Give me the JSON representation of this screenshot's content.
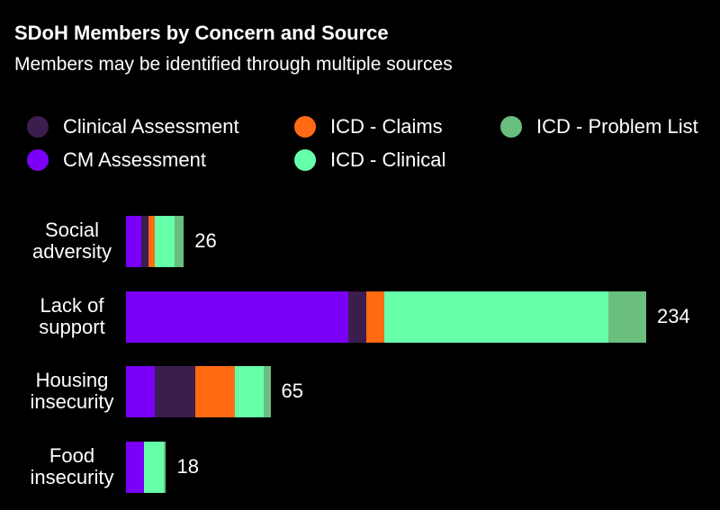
{
  "chart_data": {
    "type": "stacked-bar-horizontal",
    "title": "SDoH Members by Concern and Source",
    "subtitle": "Members may be identified through multiple sources",
    "categories": [
      "Social adversity",
      "Lack of support",
      "Housing insecurity",
      "Food insecurity"
    ],
    "series": [
      {
        "name": "CM Assessment",
        "color": "#7b00f7",
        "values": [
          7,
          100,
          13,
          8
        ]
      },
      {
        "name": "Clinical Assessment",
        "color": "#3b1d4e",
        "values": [
          3,
          8,
          18,
          0
        ]
      },
      {
        "name": "ICD - Claims",
        "color": "#ff6a13",
        "values": [
          3,
          8,
          18,
          0
        ]
      },
      {
        "name": "ICD - Clinical",
        "color": "#66ffaa",
        "values": [
          9,
          101,
          13,
          9
        ]
      },
      {
        "name": "ICD - Problem List",
        "color": "#6abf7f",
        "values": [
          4,
          17,
          3,
          1
        ]
      }
    ],
    "totals": [
      26,
      234,
      65,
      18
    ]
  }
}
